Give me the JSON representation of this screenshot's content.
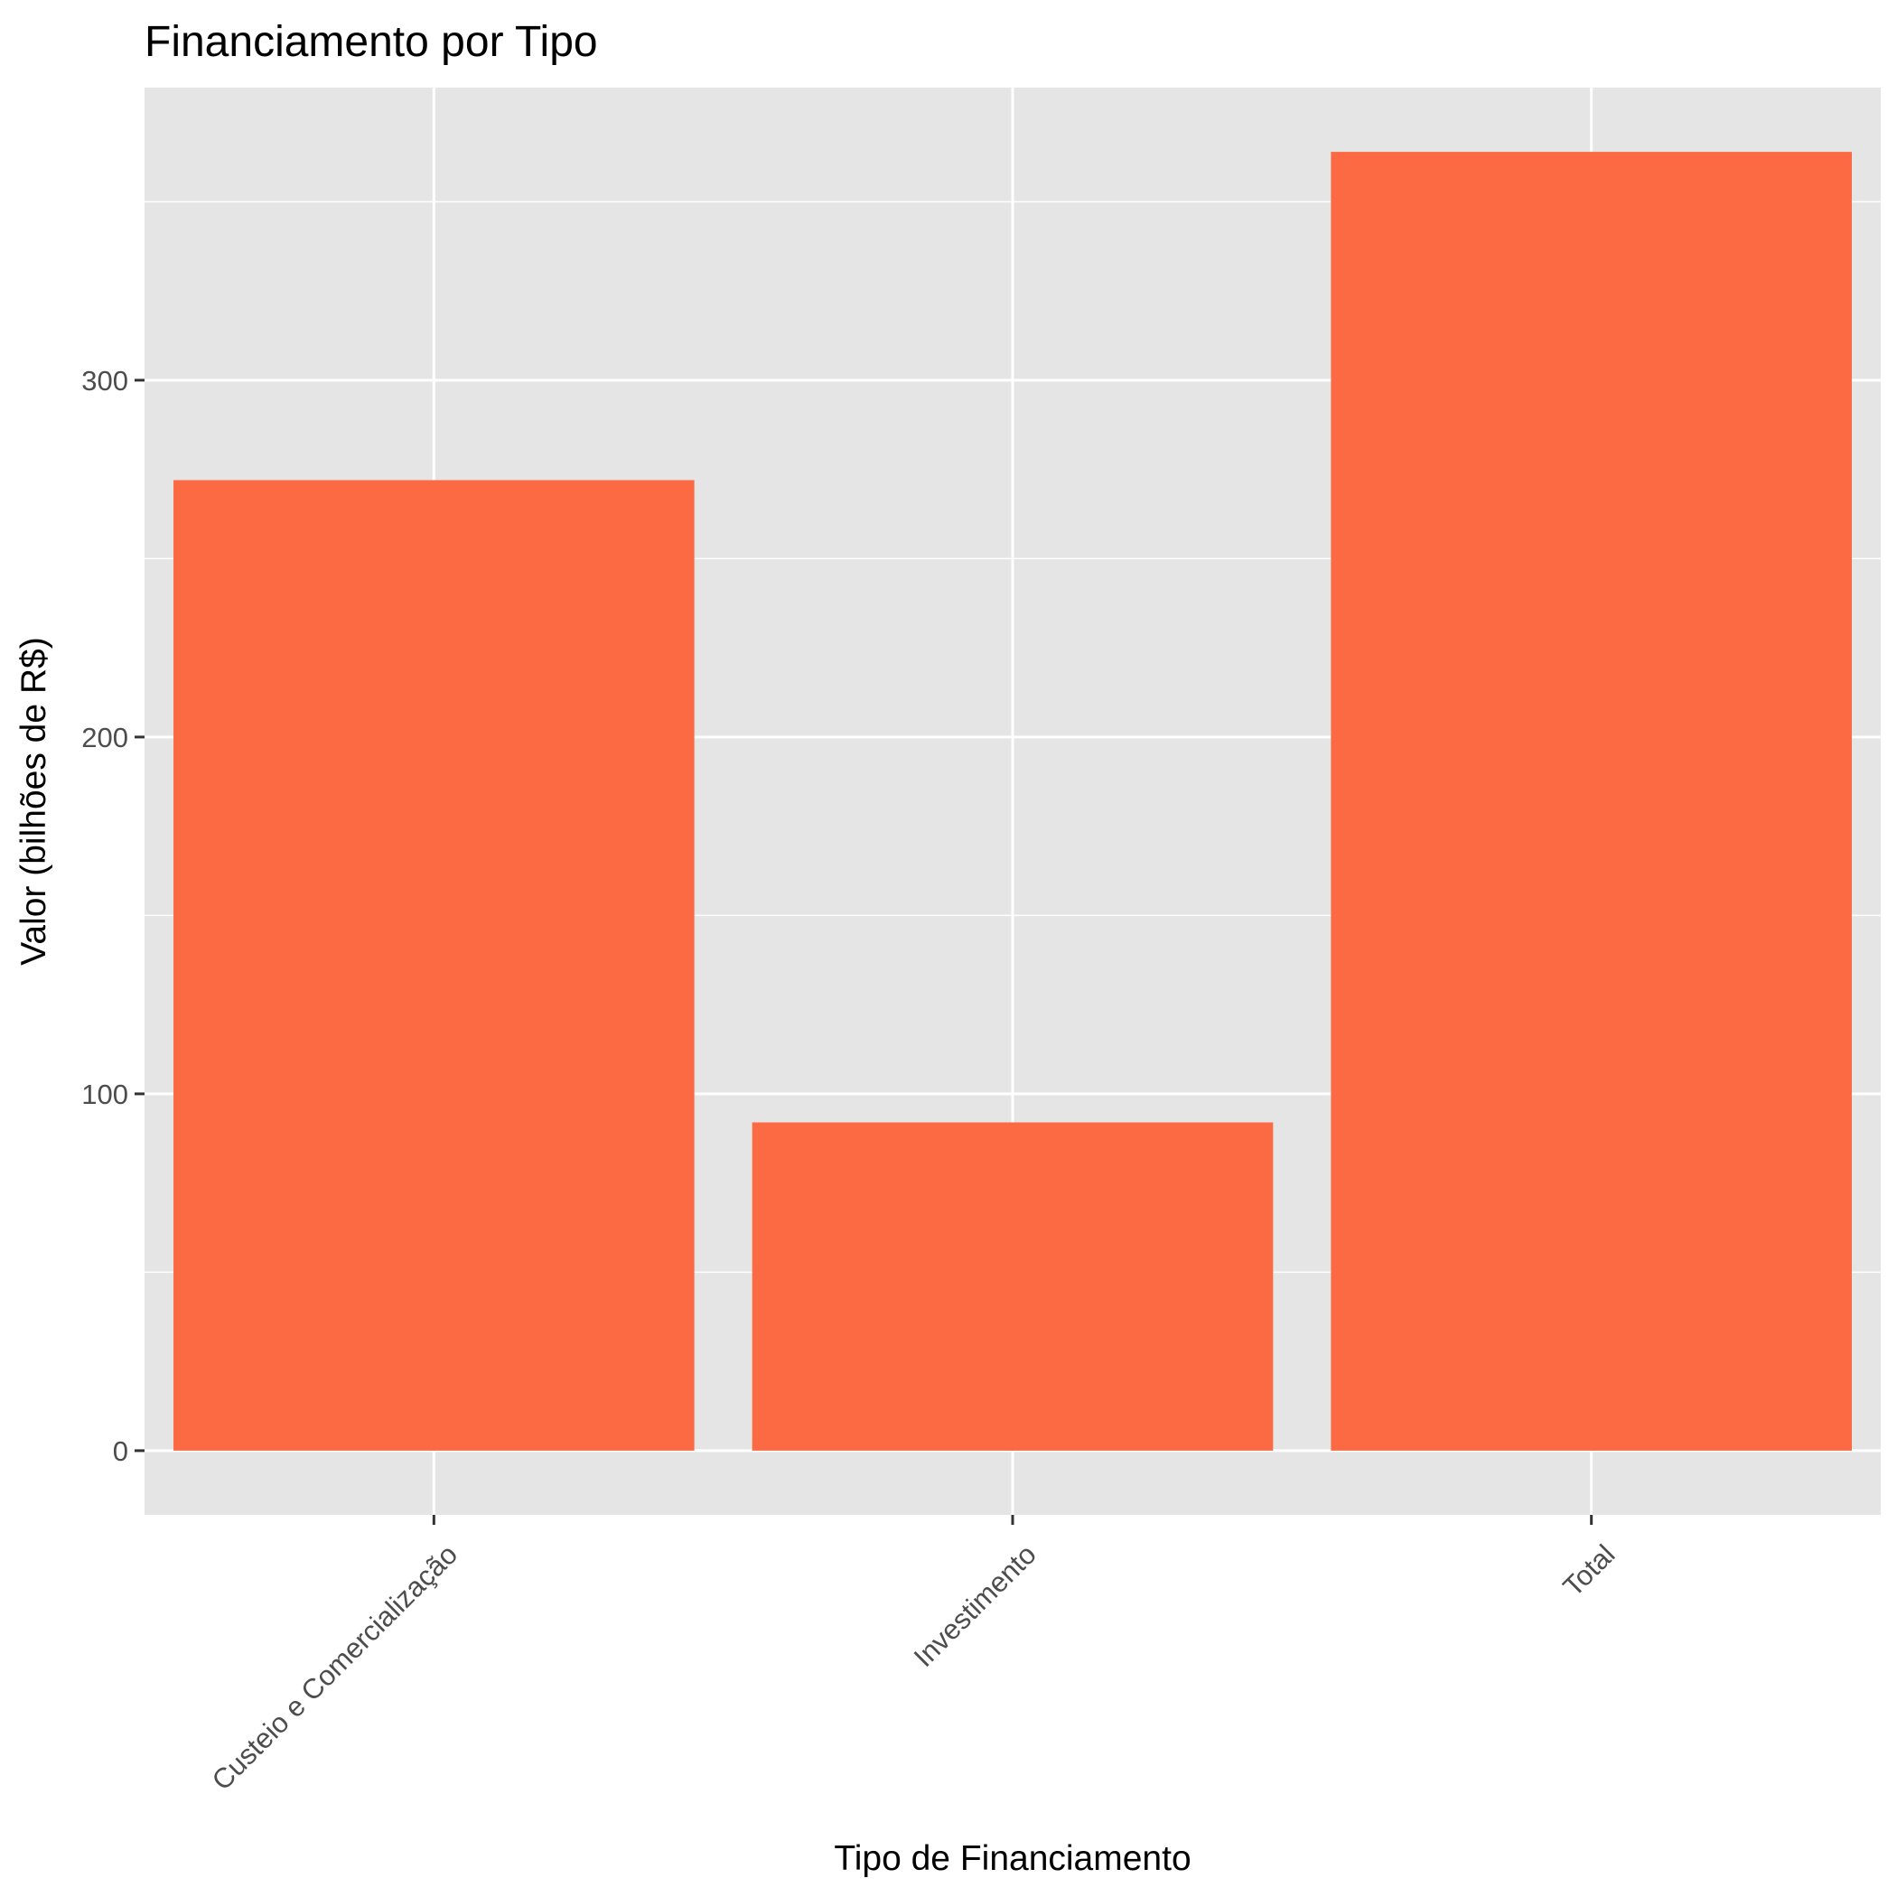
{
  "chart_data": {
    "type": "bar",
    "title": "Financiamento por Tipo",
    "xlabel": "Tipo de Financiamento",
    "ylabel": "Valor (bilhões de R$)",
    "categories": [
      "Custeio e Comercialização",
      "Investimento",
      "Total"
    ],
    "values": [
      272,
      92,
      364
    ],
    "ylim": [
      -18,
      382
    ],
    "yticks": [
      0,
      100,
      200,
      300
    ],
    "ytick_labels": [
      "0",
      "100",
      "200",
      "300"
    ],
    "ygrid_minor": [
      50,
      150,
      250,
      350
    ],
    "grid": true,
    "legend": "none",
    "colors": {
      "bar": "#FC6A44",
      "panel": "#E5E5E5",
      "grid": "#FFFFFF",
      "tick": "#333333",
      "tick_label": "#4D4D4D"
    }
  }
}
